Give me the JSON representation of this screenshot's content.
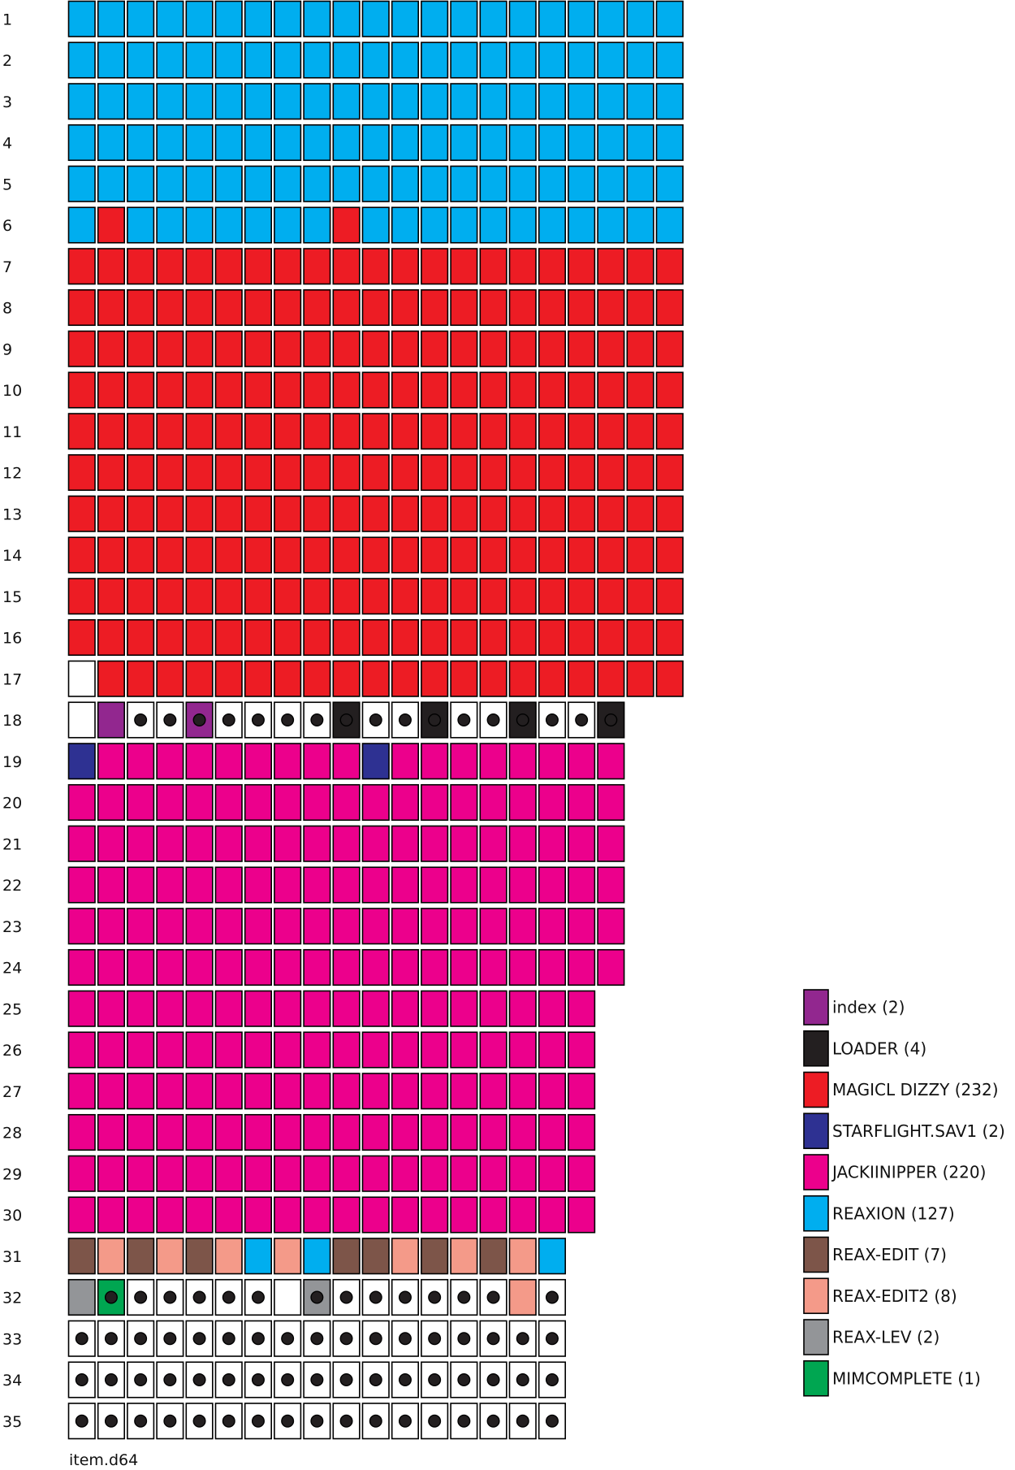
{
  "caption": "item.d64",
  "colors": {
    "index": "#92278f",
    "LOADER": "#231f20",
    "MAGICL DIZZY": "#ed1c24",
    "STARFLIGHT.SAV1": "#2e3192",
    "JACKIINIPPER": "#ec008c",
    "REAXION": "#00aeef",
    "REAX-EDIT": "#7d5549",
    "REAX-EDIT2": "#f49a89",
    "REAX-LEV": "#939598",
    "MIMCOMPLETE": "#00a651",
    "free": "#ffffff"
  },
  "legend": [
    {
      "key": "index",
      "label": "index (2)"
    },
    {
      "key": "LOADER",
      "label": "LOADER (4)"
    },
    {
      "key": "MAGICL DIZZY",
      "label": "MAGICL DIZZY (232)"
    },
    {
      "key": "STARFLIGHT.SAV1",
      "label": "STARFLIGHT.SAV1 (2)"
    },
    {
      "key": "JACKIINIPPER",
      "label": "JACKIINIPPER (220)"
    },
    {
      "key": "REAXION",
      "label": "REAXION (127)"
    },
    {
      "key": "REAX-EDIT",
      "label": "REAX-EDIT (7)"
    },
    {
      "key": "REAX-EDIT2",
      "label": "REAX-EDIT2 (8)"
    },
    {
      "key": "REAX-LEV",
      "label": "REAX-LEV (2)"
    },
    {
      "key": "MIMCOMPLETE",
      "label": "MIMCOMPLETE (1)"
    }
  ],
  "codes": {
    "R": "REAXION",
    "M": "MAGICL DIZZY",
    "W": "free",
    "I": "index",
    "L": "LOADER",
    "S": "STARFLIGHT.SAV1",
    "J": "JACKIINIPPER",
    "E": "REAX-EDIT",
    "P": "REAX-EDIT2",
    "G": "REAX-LEV",
    "C": "MIMCOMPLETE"
  },
  "tracks": [
    {
      "track": "1",
      "cells": "RRRRRRRRRRRRRRRRRRRRR",
      "dots": ""
    },
    {
      "track": "2",
      "cells": "RRRRRRRRRRRRRRRRRRRRR",
      "dots": ""
    },
    {
      "track": "3",
      "cells": "RRRRRRRRRRRRRRRRRRRRR",
      "dots": ""
    },
    {
      "track": "4",
      "cells": "RRRRRRRRRRRRRRRRRRRRR",
      "dots": ""
    },
    {
      "track": "5",
      "cells": "RRRRRRRRRRRRRRRRRRRRR",
      "dots": ""
    },
    {
      "track": "6",
      "cells": "RMRRRRRRRMRRRRRRRRRRR",
      "dots": ""
    },
    {
      "track": "7",
      "cells": "MMMMMMMMMMMMMMMMMMMMM",
      "dots": ""
    },
    {
      "track": "8",
      "cells": "MMMMMMMMMMMMMMMMMMMMM",
      "dots": ""
    },
    {
      "track": "9",
      "cells": "MMMMMMMMMMMMMMMMMMMMM",
      "dots": ""
    },
    {
      "track": "10",
      "cells": "MMMMMMMMMMMMMMMMMMMMM",
      "dots": ""
    },
    {
      "track": "11",
      "cells": "MMMMMMMMMMMMMMMMMMMMM",
      "dots": ""
    },
    {
      "track": "12",
      "cells": "MMMMMMMMMMMMMMMMMMMMM",
      "dots": ""
    },
    {
      "track": "13",
      "cells": "MMMMMMMMMMMMMMMMMMMMM",
      "dots": ""
    },
    {
      "track": "14",
      "cells": "MMMMMMMMMMMMMMMMMMMMM",
      "dots": ""
    },
    {
      "track": "15",
      "cells": "MMMMMMMMMMMMMMMMMMMMM",
      "dots": ""
    },
    {
      "track": "16",
      "cells": "MMMMMMMMMMMMMMMMMMMMM",
      "dots": ""
    },
    {
      "track": "17",
      "cells": "WMMMMMMMMMMMMMMMMMMMM",
      "dots": ""
    },
    {
      "track": "18",
      "cells": "WIWWIWWWWLWWLWWLWWL",
      "dots": "0011111111111111111"
    },
    {
      "track": "19",
      "cells": "SJJJJJJJJJSJJJJJJJJ",
      "dots": ""
    },
    {
      "track": "20",
      "cells": "JJJJJJJJJJJJJJJJJJJ",
      "dots": ""
    },
    {
      "track": "21",
      "cells": "JJJJJJJJJJJJJJJJJJJ",
      "dots": ""
    },
    {
      "track": "22",
      "cells": "JJJJJJJJJJJJJJJJJJJ",
      "dots": ""
    },
    {
      "track": "23",
      "cells": "JJJJJJJJJJJJJJJJJJJ",
      "dots": ""
    },
    {
      "track": "24",
      "cells": "JJJJJJJJJJJJJJJJJJJ",
      "dots": ""
    },
    {
      "track": "25",
      "cells": "JJJJJJJJJJJJJJJJJJ",
      "dots": ""
    },
    {
      "track": "26",
      "cells": "JJJJJJJJJJJJJJJJJJ",
      "dots": ""
    },
    {
      "track": "27",
      "cells": "JJJJJJJJJJJJJJJJJJ",
      "dots": ""
    },
    {
      "track": "28",
      "cells": "JJJJJJJJJJJJJJJJJJ",
      "dots": ""
    },
    {
      "track": "29",
      "cells": "JJJJJJJJJJJJJJJJJJ",
      "dots": ""
    },
    {
      "track": "30",
      "cells": "JJJJJJJJJJJJJJJJJJ",
      "dots": ""
    },
    {
      "track": "31",
      "cells": "EPEPEPRPREEPEPEPR",
      "dots": ""
    },
    {
      "track": "32",
      "cells": "GCWWWWWWGWWWWWWPW",
      "dots": "01111110111111101"
    },
    {
      "track": "33",
      "cells": "WWWWWWWWWWWWWWWWW",
      "dots": "11111111111111111"
    },
    {
      "track": "34",
      "cells": "WWWWWWWWWWWWWWWWW",
      "dots": "11111111111111111"
    },
    {
      "track": "35",
      "cells": "WWWWWWWWWWWWWWWWW",
      "dots": "11111111111111111"
    }
  ]
}
